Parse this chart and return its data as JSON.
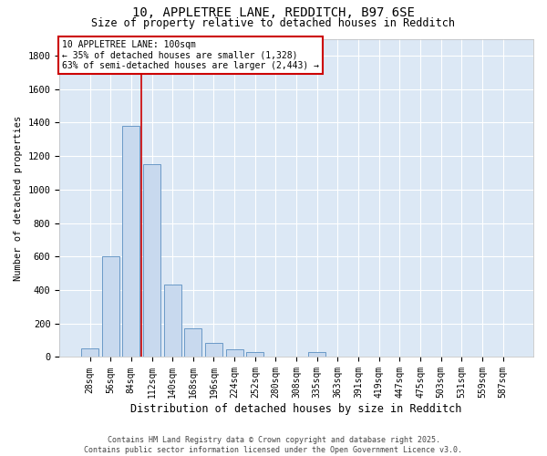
{
  "title_line1": "10, APPLETREE LANE, REDDITCH, B97 6SE",
  "title_line2": "Size of property relative to detached houses in Redditch",
  "xlabel": "Distribution of detached houses by size in Redditch",
  "ylabel": "Number of detached properties",
  "bar_color": "#c8d9ee",
  "bar_edge_color": "#5a8ec0",
  "background_color": "#dce8f5",
  "grid_color": "#ffffff",
  "categories": [
    "28sqm",
    "56sqm",
    "84sqm",
    "112sqm",
    "140sqm",
    "168sqm",
    "196sqm",
    "224sqm",
    "252sqm",
    "280sqm",
    "308sqm",
    "335sqm",
    "363sqm",
    "391sqm",
    "419sqm",
    "447sqm",
    "475sqm",
    "503sqm",
    "531sqm",
    "559sqm",
    "587sqm"
  ],
  "values": [
    50,
    600,
    1380,
    1150,
    430,
    170,
    85,
    45,
    30,
    0,
    0,
    30,
    0,
    0,
    0,
    0,
    0,
    0,
    0,
    0,
    0
  ],
  "ylim": [
    0,
    1900
  ],
  "yticks": [
    0,
    200,
    400,
    600,
    800,
    1000,
    1200,
    1400,
    1600,
    1800
  ],
  "vline_index": 2,
  "vline_color": "#cc0000",
  "annotation_box_text": "10 APPLETREE LANE: 100sqm\n← 35% of detached houses are smaller (1,328)\n63% of semi-detached houses are larger (2,443) →",
  "annotation_box_color": "#cc0000",
  "footer_text": "Contains HM Land Registry data © Crown copyright and database right 2025.\nContains public sector information licensed under the Open Government Licence v3.0.",
  "fig_width": 6.0,
  "fig_height": 5.0,
  "dpi": 100
}
